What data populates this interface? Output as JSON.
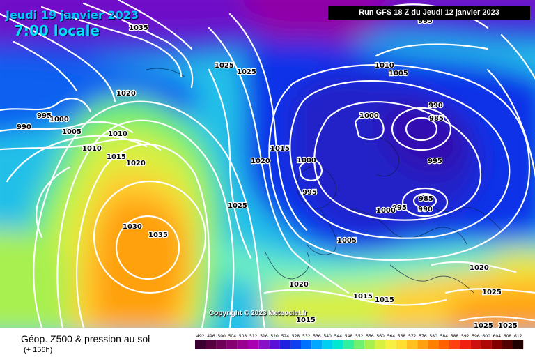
{
  "header": {
    "date_label": "Jeudi 19 janvier 2023",
    "time_label": "7:00 locale",
    "run_label": "Run GFS 18 Z du Jeudi 12 janvier 2023"
  },
  "map": {
    "copyright": "Copyright © 2023 Meteociel.fr",
    "pressure_labels": [
      "1035",
      "1025",
      "1025",
      "1010",
      "1005",
      "995",
      "1020",
      "995",
      "1000",
      "990",
      "1005",
      "1010",
      "1010",
      "1015",
      "1020",
      "1000",
      "990",
      "985",
      "1015",
      "1020",
      "1000",
      "995",
      "1025",
      "985",
      "990",
      "995",
      "1030",
      "1035",
      "1000",
      "995",
      "1005",
      "1020",
      "1020",
      "1015",
      "1015",
      "1025",
      "1025",
      "1025",
      "1015"
    ]
  },
  "legend": {
    "title": "Géop. Z500 & pression au sol",
    "subtitle": "(+ 156h)",
    "scale_values": [
      "492",
      "496",
      "500",
      "504",
      "508",
      "512",
      "516",
      "520",
      "524",
      "528",
      "532",
      "536",
      "540",
      "544",
      "548",
      "552",
      "556",
      "560",
      "564",
      "568",
      "572",
      "576",
      "580",
      "584",
      "588",
      "592",
      "596",
      "600",
      "604",
      "608",
      "612"
    ],
    "scale_colors": [
      "#3a0030",
      "#560040",
      "#6e0058",
      "#860070",
      "#9a0090",
      "#a800b0",
      "#8a10c8",
      "#5a10d8",
      "#2020e0",
      "#1040f0",
      "#0070ff",
      "#00a8ff",
      "#00d0f0",
      "#00e8d0",
      "#30f0a0",
      "#70f070",
      "#a8f050",
      "#d8f040",
      "#f8f040",
      "#ffe030",
      "#ffc020",
      "#ffa010",
      "#ff8000",
      "#ff6000",
      "#ff4010",
      "#f02010",
      "#d01010",
      "#b00808",
      "#800000",
      "#500000",
      "#200000"
    ]
  }
}
